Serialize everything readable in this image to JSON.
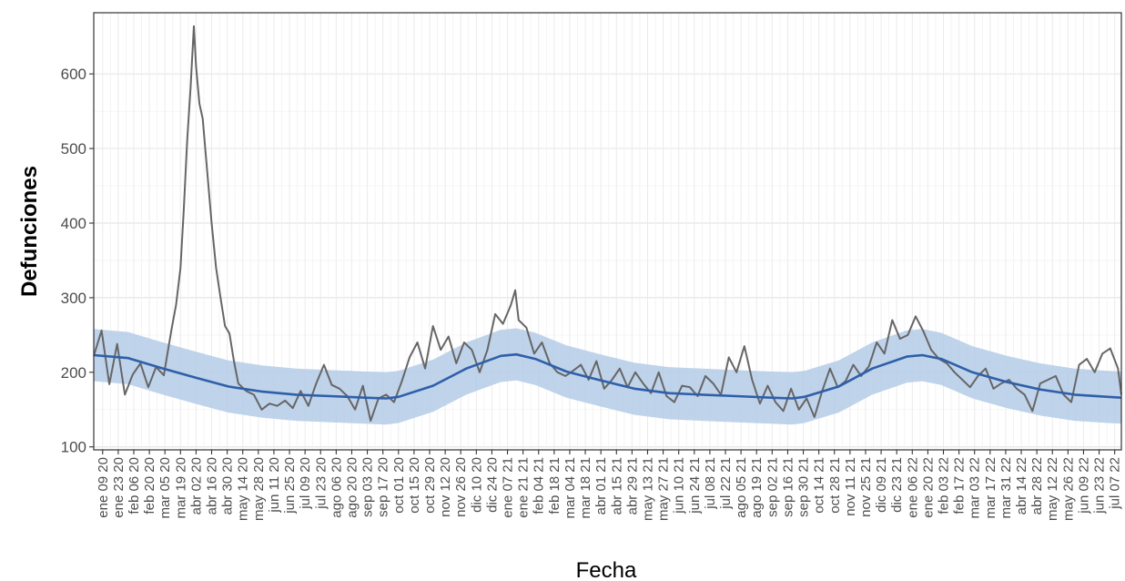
{
  "chart_data": {
    "type": "line",
    "title": "",
    "xlabel": "Fecha",
    "ylabel": "Defunciones",
    "ylim": [
      96,
      682
    ],
    "xlim": [
      "2020-01-01",
      "2022-07-13"
    ],
    "grid": true,
    "legend": "none",
    "y_ticks": [
      100,
      200,
      300,
      400,
      500,
      600
    ],
    "x_tick_dates": [
      "2020-01-09",
      "2020-01-23",
      "2020-02-06",
      "2020-02-20",
      "2020-03-05",
      "2020-03-19",
      "2020-04-02",
      "2020-04-16",
      "2020-04-30",
      "2020-05-14",
      "2020-05-28",
      "2020-06-11",
      "2020-06-25",
      "2020-07-09",
      "2020-07-23",
      "2020-08-06",
      "2020-08-20",
      "2020-09-03",
      "2020-09-17",
      "2020-10-01",
      "2020-10-15",
      "2020-10-29",
      "2020-11-12",
      "2020-11-26",
      "2020-12-10",
      "2020-12-24",
      "2021-01-07",
      "2021-01-21",
      "2021-02-04",
      "2021-02-18",
      "2021-03-04",
      "2021-03-18",
      "2021-04-01",
      "2021-04-15",
      "2021-04-29",
      "2021-05-13",
      "2021-05-27",
      "2021-06-10",
      "2021-06-24",
      "2021-07-08",
      "2021-07-22",
      "2021-08-05",
      "2021-08-19",
      "2021-09-02",
      "2021-09-16",
      "2021-09-30",
      "2021-10-14",
      "2021-10-28",
      "2021-11-11",
      "2021-11-25",
      "2021-12-09",
      "2021-12-23",
      "2022-01-06",
      "2022-01-20",
      "2022-02-03",
      "2022-02-17",
      "2022-03-03",
      "2022-03-17",
      "2022-03-31",
      "2022-04-14",
      "2022-04-28",
      "2022-05-12",
      "2022-05-26",
      "2022-06-09",
      "2022-06-23",
      "2022-07-07"
    ],
    "x_tick_labels": [
      "ene 09 20",
      "ene 23 20",
      "feb 06 20",
      "feb 20 20",
      "mar 05 20",
      "mar 19 20",
      "abr 02 20",
      "abr 16 20",
      "abr 30 20",
      "may 14 20",
      "may 28 20",
      "jun 11 20",
      "jun 25 20",
      "jul 09 20",
      "jul 23 20",
      "ago 06 20",
      "ago 20 20",
      "sep 03 20",
      "sep 17 20",
      "oct 01 20",
      "oct 15 20",
      "oct 29 20",
      "nov 12 20",
      "nov 26 20",
      "dic 10 20",
      "dic 24 20",
      "ene 07 21",
      "ene 21 21",
      "feb 04 21",
      "feb 18 21",
      "mar 04 21",
      "mar 18 21",
      "abr 01 21",
      "abr 15 21",
      "abr 29 21",
      "may 13 21",
      "may 27 21",
      "jun 10 21",
      "jun 24 21",
      "jul 08 21",
      "jul 22 21",
      "ago 05 21",
      "ago 19 21",
      "sep 02 21",
      "sep 16 21",
      "sep 30 21",
      "oct 14 21",
      "oct 28 21",
      "nov 11 21",
      "nov 25 21",
      "dic 09 21",
      "dic 23 21",
      "ene 06 22",
      "ene 20 22",
      "feb 03 22",
      "feb 17 22",
      "mar 03 22",
      "mar 17 22",
      "mar 31 22",
      "abr 14 22",
      "abr 28 22",
      "may 12 22",
      "may 26 22",
      "jun 09 22",
      "jun 23 22",
      "jul 07 22"
    ],
    "series": [
      {
        "color": "#666666",
        "kind": "observed",
        "x": [
          "2020-01-01",
          "2020-01-08",
          "2020-01-15",
          "2020-01-22",
          "2020-01-29",
          "2020-02-05",
          "2020-02-12",
          "2020-02-19",
          "2020-02-26",
          "2020-03-04",
          "2020-03-11",
          "2020-03-15",
          "2020-03-19",
          "2020-03-22",
          "2020-03-25",
          "2020-03-28",
          "2020-03-31",
          "2020-04-02",
          "2020-04-05",
          "2020-04-08",
          "2020-04-12",
          "2020-04-16",
          "2020-04-20",
          "2020-04-24",
          "2020-04-28",
          "2020-05-02",
          "2020-05-06",
          "2020-05-10",
          "2020-05-17",
          "2020-05-24",
          "2020-05-31",
          "2020-06-07",
          "2020-06-14",
          "2020-06-21",
          "2020-06-28",
          "2020-07-05",
          "2020-07-12",
          "2020-07-19",
          "2020-07-26",
          "2020-08-02",
          "2020-08-09",
          "2020-08-16",
          "2020-08-23",
          "2020-08-30",
          "2020-09-06",
          "2020-09-13",
          "2020-09-20",
          "2020-09-27",
          "2020-10-04",
          "2020-10-11",
          "2020-10-18",
          "2020-10-25",
          "2020-11-01",
          "2020-11-08",
          "2020-11-15",
          "2020-11-22",
          "2020-11-29",
          "2020-12-06",
          "2020-12-13",
          "2020-12-20",
          "2020-12-27",
          "2021-01-03",
          "2021-01-10",
          "2021-01-14",
          "2021-01-17",
          "2021-01-24",
          "2021-01-31",
          "2021-02-07",
          "2021-02-14",
          "2021-02-21",
          "2021-02-28",
          "2021-03-07",
          "2021-03-14",
          "2021-03-21",
          "2021-03-28",
          "2021-04-04",
          "2021-04-11",
          "2021-04-18",
          "2021-04-25",
          "2021-05-02",
          "2021-05-09",
          "2021-05-16",
          "2021-05-23",
          "2021-05-30",
          "2021-06-06",
          "2021-06-13",
          "2021-06-20",
          "2021-06-27",
          "2021-07-04",
          "2021-07-11",
          "2021-07-18",
          "2021-07-25",
          "2021-08-01",
          "2021-08-08",
          "2021-08-15",
          "2021-08-22",
          "2021-08-29",
          "2021-09-05",
          "2021-09-12",
          "2021-09-19",
          "2021-09-26",
          "2021-10-03",
          "2021-10-10",
          "2021-10-17",
          "2021-10-24",
          "2021-10-31",
          "2021-11-07",
          "2021-11-14",
          "2021-11-21",
          "2021-11-28",
          "2021-12-05",
          "2021-12-12",
          "2021-12-19",
          "2021-12-26",
          "2022-01-02",
          "2022-01-09",
          "2022-01-16",
          "2022-01-23",
          "2022-01-30",
          "2022-02-06",
          "2022-02-13",
          "2022-02-20",
          "2022-02-27",
          "2022-03-06",
          "2022-03-13",
          "2022-03-20",
          "2022-03-27",
          "2022-04-03",
          "2022-04-10",
          "2022-04-17",
          "2022-04-24",
          "2022-05-01",
          "2022-05-08",
          "2022-05-15",
          "2022-05-22",
          "2022-05-29",
          "2022-06-05",
          "2022-06-12",
          "2022-06-19",
          "2022-06-26",
          "2022-07-03",
          "2022-07-10",
          "2022-07-13"
        ],
        "values": [
          222,
          256,
          184,
          238,
          170,
          197,
          212,
          180,
          207,
          196,
          258,
          290,
          340,
          420,
          510,
          580,
          664,
          610,
          560,
          540,
          470,
          400,
          340,
          300,
          262,
          252,
          215,
          185,
          175,
          170,
          150,
          158,
          155,
          162,
          152,
          175,
          155,
          185,
          210,
          183,
          178,
          168,
          150,
          182,
          135,
          165,
          170,
          160,
          188,
          220,
          240,
          205,
          262,
          230,
          248,
          212,
          240,
          230,
          200,
          230,
          278,
          265,
          290,
          310,
          270,
          260,
          225,
          240,
          212,
          200,
          195,
          202,
          210,
          190,
          215,
          178,
          190,
          205,
          180,
          200,
          185,
          172,
          200,
          168,
          160,
          182,
          180,
          168,
          195,
          185,
          170,
          220,
          200,
          235,
          190,
          158,
          182,
          160,
          148,
          178,
          150,
          165,
          140,
          175,
          205,
          180,
          188,
          210,
          195,
          208,
          240,
          225,
          270,
          245,
          250,
          275,
          255,
          230,
          218,
          212,
          200,
          190,
          180,
          195,
          205,
          178,
          185,
          190,
          178,
          170,
          148,
          185,
          190,
          195,
          170,
          160,
          210,
          218,
          200,
          225,
          232,
          205,
          170
        ]
      },
      {
        "color": "#2f5fa8",
        "kind": "baseline",
        "x": [
          "2020-01-01",
          "2020-02-01",
          "2020-03-01",
          "2020-04-01",
          "2020-05-01",
          "2020-06-01",
          "2020-07-01",
          "2020-08-01",
          "2020-09-01",
          "2020-09-20",
          "2020-10-01",
          "2020-11-01",
          "2020-12-01",
          "2021-01-01",
          "2021-01-15",
          "2021-02-01",
          "2021-03-01",
          "2021-04-01",
          "2021-05-01",
          "2021-06-01",
          "2021-07-01",
          "2021-08-01",
          "2021-09-01",
          "2021-09-20",
          "2021-10-01",
          "2021-11-01",
          "2021-12-01",
          "2022-01-01",
          "2022-01-15",
          "2022-02-01",
          "2022-03-01",
          "2022-04-01",
          "2022-05-01",
          "2022-06-01",
          "2022-07-01",
          "2022-07-13"
        ],
        "values": [
          223,
          219,
          206,
          193,
          181,
          174,
          170,
          168,
          166,
          165,
          167,
          182,
          205,
          222,
          224,
          218,
          201,
          189,
          178,
          172,
          170,
          168,
          166,
          165,
          167,
          181,
          205,
          221,
          223,
          218,
          200,
          187,
          177,
          170,
          167,
          166
        ]
      }
    ],
    "band": {
      "color": "#b4cbe8",
      "half_width": 35
    }
  }
}
